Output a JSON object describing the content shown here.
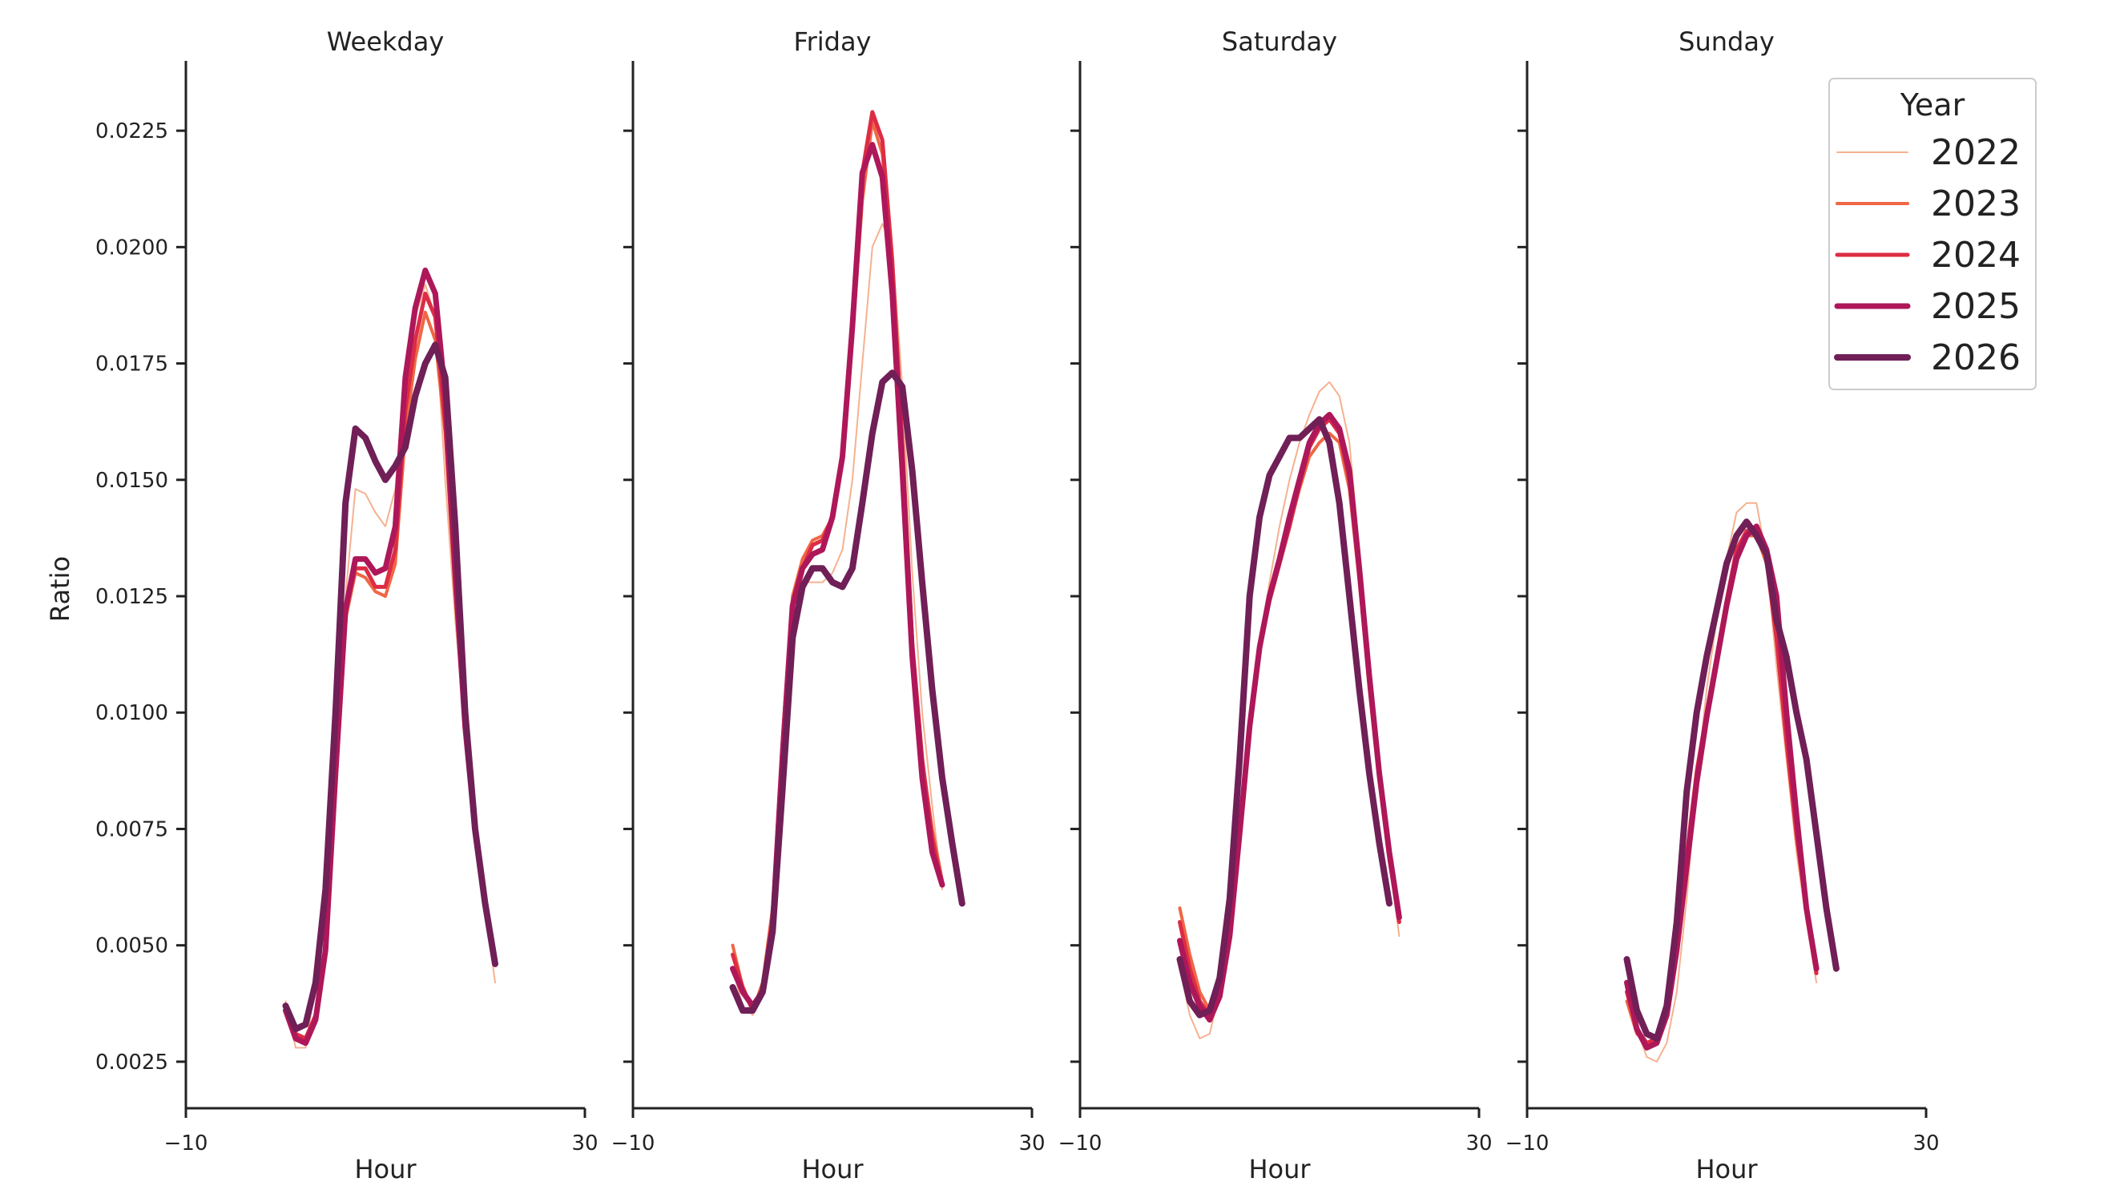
{
  "chart_data": {
    "type": "line",
    "ylabel": "Ratio",
    "xlabel": "Hour",
    "xlim": [
      -10,
      30
    ],
    "ylim": [
      0.0015,
      0.024
    ],
    "xticks": [
      "-10",
      "30"
    ],
    "xticks_display": [
      "−10",
      "30"
    ],
    "yticks": [
      0.0025,
      0.005,
      0.0075,
      0.01,
      0.0125,
      0.015,
      0.0175,
      0.02,
      0.0225
    ],
    "yticks_display": [
      "0.0025",
      "0.0050",
      "0.0075",
      "0.0100",
      "0.0125",
      "0.0150",
      "0.0175",
      "0.0200",
      "0.0225"
    ],
    "hours": [
      0,
      1,
      2,
      3,
      4,
      5,
      6,
      7,
      8,
      9,
      10,
      11,
      12,
      13,
      14,
      15,
      16,
      17,
      18,
      19,
      20,
      21,
      22,
      23
    ],
    "legend": {
      "title": "Year",
      "placement": "top-right"
    },
    "series_styles": [
      {
        "name": "2022",
        "color": "#f5b190",
        "width": 2
      },
      {
        "name": "2023",
        "color": "#ef6745",
        "width": 4
      },
      {
        "name": "2024",
        "color": "#dd2c45",
        "width": 5
      },
      {
        "name": "2025",
        "color": "#ae1759",
        "width": 7
      },
      {
        "name": "2026",
        "color": "#701f57",
        "width": 8
      }
    ],
    "panels": [
      {
        "title": "Weekday",
        "series": [
          {
            "name": "2022",
            "values": [
              0.0038,
              0.0028,
              0.0028,
              0.0042,
              0.006,
              0.009,
              0.0125,
              0.0148,
              0.0147,
              0.0143,
              0.014,
              0.0148,
              0.0172,
              0.0185,
              0.0192,
              0.0185,
              0.015,
              0.012,
              0.0095,
              0.0075,
              0.0058,
              0.0042,
              null,
              null
            ]
          },
          {
            "name": "2023",
            "values": [
              0.0037,
              0.003,
              0.003,
              0.0035,
              0.005,
              0.0085,
              0.012,
              0.013,
              0.0129,
              0.0126,
              0.0125,
              0.0132,
              0.016,
              0.0176,
              0.0186,
              0.018,
              0.016,
              0.0125,
              0.0095,
              0.0075,
              0.006,
              0.0048,
              null,
              null
            ]
          },
          {
            "name": "2024",
            "values": [
              0.0036,
              0.0031,
              0.003,
              0.0035,
              0.005,
              0.0086,
              0.0122,
              0.0131,
              0.0131,
              0.0127,
              0.0127,
              0.0135,
              0.0165,
              0.018,
              0.019,
              0.0185,
              0.0162,
              0.0128,
              0.0096,
              0.0075,
              0.0059,
              0.0047,
              null,
              null
            ]
          },
          {
            "name": "2025",
            "values": [
              0.0036,
              0.003,
              0.0029,
              0.0034,
              0.0049,
              0.0087,
              0.0122,
              0.0133,
              0.0133,
              0.013,
              0.0131,
              0.014,
              0.0172,
              0.0187,
              0.0195,
              0.019,
              0.0168,
              0.013,
              0.0097,
              0.0075,
              0.0059,
              0.0046,
              null,
              null
            ]
          },
          {
            "name": "2026",
            "values": [
              0.0037,
              0.0032,
              0.0033,
              0.0042,
              0.0062,
              0.01,
              0.0145,
              0.0161,
              0.0159,
              0.0154,
              0.015,
              0.0153,
              0.0157,
              0.0168,
              0.0175,
              0.0179,
              0.0172,
              0.014,
              0.01,
              0.0075,
              0.0059,
              0.0046,
              null,
              null
            ]
          }
        ]
      },
      {
        "title": "Friday",
        "series": [
          {
            "name": "2022",
            "values": [
              0.0045,
              0.0037,
              0.0035,
              0.004,
              0.0055,
              0.009,
              0.012,
              0.0128,
              0.0128,
              0.0128,
              0.013,
              0.0135,
              0.015,
              0.0175,
              0.02,
              0.0205,
              0.02,
              0.017,
              0.013,
              0.01,
              0.008,
              0.0062,
              null,
              null
            ]
          },
          {
            "name": "2023",
            "values": [
              0.005,
              0.0041,
              0.0036,
              0.0042,
              0.0058,
              0.0095,
              0.0125,
              0.0133,
              0.0137,
              0.0138,
              0.0142,
              0.0155,
              0.018,
              0.021,
              0.0227,
              0.022,
              0.0195,
              0.0155,
              0.0115,
              0.009,
              0.0075,
              0.0064,
              null,
              null
            ]
          },
          {
            "name": "2024",
            "values": [
              0.0048,
              0.0041,
              0.0036,
              0.0041,
              0.0056,
              0.0092,
              0.0123,
              0.0131,
              0.0136,
              0.0137,
              0.0142,
              0.0156,
              0.0183,
              0.0216,
              0.0229,
              0.0223,
              0.0197,
              0.0158,
              0.0115,
              0.009,
              0.0073,
              0.0063,
              null,
              null
            ]
          },
          {
            "name": "2025",
            "values": [
              0.0045,
              0.004,
              0.0037,
              0.004,
              0.0054,
              0.0091,
              0.0123,
              0.0131,
              0.0134,
              0.0135,
              0.0142,
              0.0155,
              0.0183,
              0.0216,
              0.0222,
              0.0215,
              0.019,
              0.0152,
              0.0112,
              0.0086,
              0.007,
              0.0063,
              null,
              null
            ]
          },
          {
            "name": "2026",
            "values": [
              0.0041,
              0.0036,
              0.0036,
              0.004,
              0.0053,
              0.0084,
              0.0116,
              0.0127,
              0.0131,
              0.0131,
              0.0128,
              0.0127,
              0.0131,
              0.0145,
              0.016,
              0.0171,
              0.0173,
              0.017,
              0.0152,
              0.0128,
              0.0105,
              0.0086,
              0.0072,
              0.0059
            ]
          }
        ]
      },
      {
        "title": "Saturday",
        "series": [
          {
            "name": "2022",
            "values": [
              0.0045,
              0.0035,
              0.003,
              0.0031,
              0.004,
              0.0055,
              0.0075,
              0.0097,
              0.0115,
              0.0128,
              0.014,
              0.015,
              0.0158,
              0.0164,
              0.0169,
              0.0171,
              0.0168,
              0.0158,
              0.0135,
              0.011,
              0.0087,
              0.0068,
              0.0052,
              null
            ]
          },
          {
            "name": "2023",
            "values": [
              0.0058,
              0.0048,
              0.004,
              0.0036,
              0.004,
              0.0054,
              0.0075,
              0.0098,
              0.0115,
              0.0125,
              0.0133,
              0.014,
              0.0148,
              0.0155,
              0.0158,
              0.016,
              0.0158,
              0.0148,
              0.0128,
              0.0105,
              0.0085,
              0.0068,
              0.0055,
              null
            ]
          },
          {
            "name": "2024",
            "values": [
              0.0055,
              0.0045,
              0.0038,
              0.0035,
              0.004,
              0.0053,
              0.0074,
              0.0098,
              0.0114,
              0.0124,
              0.0132,
              0.014,
              0.0149,
              0.0157,
              0.0161,
              0.0163,
              0.016,
              0.015,
              0.013,
              0.0107,
              0.0086,
              0.0069,
              0.0055,
              null
            ]
          },
          {
            "name": "2025",
            "values": [
              0.0051,
              0.0042,
              0.0037,
              0.0034,
              0.0039,
              0.0052,
              0.0074,
              0.0097,
              0.0114,
              0.0125,
              0.0133,
              0.0142,
              0.015,
              0.0158,
              0.0162,
              0.0164,
              0.0161,
              0.0152,
              0.0131,
              0.0108,
              0.0087,
              0.007,
              0.0056,
              null
            ]
          },
          {
            "name": "2026",
            "values": [
              0.0047,
              0.0038,
              0.0035,
              0.0036,
              0.0043,
              0.006,
              0.009,
              0.0125,
              0.0142,
              0.0151,
              0.0155,
              0.0159,
              0.0159,
              0.0161,
              0.0163,
              0.0158,
              0.0145,
              0.0125,
              0.0105,
              0.0087,
              0.0072,
              0.0059,
              null,
              null
            ]
          }
        ]
      },
      {
        "title": "Sunday",
        "series": [
          {
            "name": "2022",
            "values": [
              0.004,
              0.0032,
              0.0026,
              0.0025,
              0.0029,
              0.004,
              0.006,
              0.0085,
              0.0105,
              0.012,
              0.0133,
              0.0143,
              0.0145,
              0.0145,
              0.0133,
              0.011,
              0.009,
              0.007,
              0.0055,
              0.0042,
              null,
              null,
              null,
              null
            ]
          },
          {
            "name": "2023",
            "values": [
              0.0038,
              0.0031,
              0.0029,
              0.003,
              0.0036,
              0.005,
              0.007,
              0.0088,
              0.01,
              0.0112,
              0.0124,
              0.0134,
              0.0138,
              0.0138,
              0.0132,
              0.0115,
              0.0093,
              0.0073,
              0.0057,
              0.0044,
              null,
              null,
              null,
              null
            ]
          },
          {
            "name": "2024",
            "values": [
              0.004,
              0.0032,
              0.0029,
              0.003,
              0.0036,
              0.005,
              0.0069,
              0.0087,
              0.01,
              0.0112,
              0.0124,
              0.0135,
              0.0139,
              0.014,
              0.0133,
              0.0116,
              0.0094,
              0.0074,
              0.0058,
              0.0044,
              null,
              null,
              null,
              null
            ]
          },
          {
            "name": "2025",
            "values": [
              0.0042,
              0.0032,
              0.0028,
              0.0029,
              0.0035,
              0.0049,
              0.0067,
              0.0085,
              0.0099,
              0.0111,
              0.0123,
              0.0133,
              0.0138,
              0.014,
              0.0135,
              0.0125,
              0.01,
              0.0078,
              0.0058,
              0.0045,
              null,
              null,
              null,
              null
            ]
          },
          {
            "name": "2026",
            "values": [
              0.0047,
              0.0036,
              0.0031,
              0.003,
              0.0037,
              0.0055,
              0.0083,
              0.01,
              0.0112,
              0.0122,
              0.0132,
              0.0138,
              0.0141,
              0.0138,
              0.0134,
              0.012,
              0.0112,
              0.01,
              0.009,
              0.0074,
              0.0058,
              0.0045,
              null,
              null
            ]
          }
        ]
      }
    ]
  }
}
